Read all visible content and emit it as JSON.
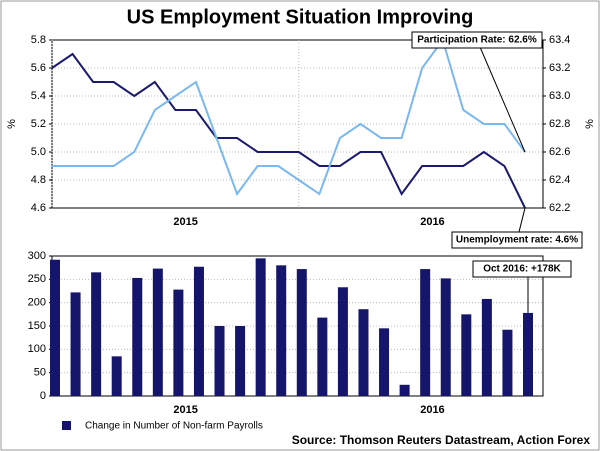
{
  "chart_data": [
    {
      "type": "line",
      "title": "US Employment Situation Improving",
      "categories": [
        null,
        null,
        null,
        null,
        null,
        null,
        "2015",
        null,
        null,
        null,
        null,
        null,
        null,
        null,
        null,
        null,
        null,
        null,
        "2016",
        null,
        null,
        null,
        null,
        null
      ],
      "series": [
        {
          "name": "Unemployment rate",
          "color": "#1a1a6e",
          "values": [
            5.6,
            5.7,
            5.5,
            5.5,
            5.4,
            5.5,
            5.3,
            5.3,
            5.1,
            5.1,
            5.0,
            5.0,
            5.0,
            4.9,
            4.9,
            5.0,
            5.0,
            4.7,
            4.9,
            4.9,
            4.9,
            5.0,
            4.9,
            4.6
          ]
        },
        {
          "name": "Participation Rate",
          "color": "#7ab8ef",
          "axis": "y2",
          "values": [
            62.5,
            62.5,
            62.5,
            62.5,
            62.6,
            62.9,
            63.0,
            63.1,
            62.7,
            62.3,
            62.5,
            62.5,
            62.4,
            62.3,
            62.7,
            62.8,
            62.7,
            62.7,
            63.2,
            63.4,
            62.9,
            62.8,
            62.8,
            62.6
          ]
        }
      ],
      "ylabel": "%",
      "y2label": "%",
      "ylim": [
        4.6,
        5.8
      ],
      "yticks": [
        4.6,
        4.8,
        {
          "value": 5,
          "label": "5.0"
        },
        5.2,
        5.4,
        5.6,
        5.8
      ],
      "y2lim": [
        62.2,
        63.4
      ],
      "y2ticks": [
        62.2,
        62.4,
        62.6,
        62.8,
        {
          "value": 63,
          "label": "63.0"
        },
        63.2,
        63.4
      ],
      "grid": true,
      "annotations": [
        "Participation Rate: 62.6%",
        "Unemployment rate: 4.6%"
      ]
    },
    {
      "type": "bar",
      "categories": [
        null,
        null,
        null,
        null,
        null,
        null,
        "2015",
        null,
        null,
        null,
        null,
        null,
        null,
        null,
        null,
        null,
        null,
        null,
        "2016",
        null,
        null,
        null,
        null,
        null
      ],
      "series": [
        {
          "name": "Change in Number of Non-farm Payrolls",
          "color": "#15156b",
          "values": [
            292,
            222,
            265,
            85,
            253,
            273,
            228,
            277,
            150,
            150,
            295,
            280,
            272,
            168,
            233,
            186,
            145,
            24,
            272,
            252,
            175,
            208,
            142,
            178
          ]
        }
      ],
      "ylim": [
        0,
        300
      ],
      "yticks": [
        0,
        50,
        100,
        150,
        200,
        250,
        300
      ],
      "grid": true,
      "annotations": [
        "Oct 2016: +178K"
      ],
      "source": "Source: Thomson Reuters Datastream, Action Forex"
    }
  ]
}
